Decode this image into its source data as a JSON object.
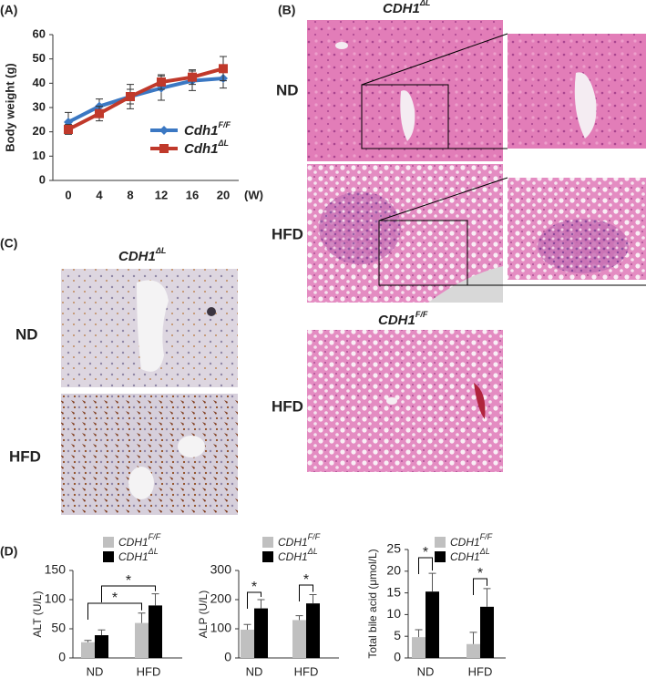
{
  "figure": {
    "panel_labels": [
      "(A)",
      "(B)",
      "(C)",
      "(D)"
    ],
    "B": {
      "header": {
        "text": "CDH1",
        "sup": "ΔL"
      },
      "rows": [
        "ND",
        "HFD"
      ],
      "header2": {
        "text": "CDH1",
        "sup": "F/F"
      },
      "row3": "HFD"
    },
    "C": {
      "header": {
        "text": "CDH1",
        "sup": "ΔL"
      },
      "rows": [
        "ND",
        "HFD"
      ]
    }
  },
  "chart_data": [
    {
      "type": "line",
      "y_label": "Body weight (g)",
      "x_label": "(W)",
      "categories": [
        "0",
        "4",
        "8",
        "12",
        "16",
        "20"
      ],
      "ylim": [
        0,
        60
      ],
      "yticks": [
        0,
        10,
        20,
        30,
        40,
        50,
        60
      ],
      "series": [
        {
          "name": "Cdh1",
          "superscript": "F/F",
          "color": "#3b78c3",
          "values": [
            24,
            30.5,
            34.5,
            38,
            41,
            42
          ],
          "errors": [
            4,
            3,
            3,
            5,
            4,
            4
          ]
        },
        {
          "name": "Cdh1",
          "superscript": "ΔL",
          "color": "#c0392b",
          "values": [
            21,
            27.5,
            34.5,
            40.5,
            42.5,
            46
          ],
          "errors": [
            2,
            3,
            5,
            3,
            3,
            5
          ]
        }
      ]
    },
    {
      "type": "bar",
      "y_label": "ALT (U/L)",
      "categories": [
        "ND",
        "HFD"
      ],
      "ylim": [
        0,
        150
      ],
      "yticks": [
        0,
        50,
        100,
        150
      ],
      "annotations": [
        "*",
        "*"
      ],
      "series": [
        {
          "name": "CDH1",
          "superscript": "F/F",
          "color": "#c0c0c0",
          "values": [
            27,
            60
          ],
          "errors": [
            3,
            17
          ]
        },
        {
          "name": "CDH1",
          "superscript": "ΔL",
          "color": "#000000",
          "values": [
            39,
            90
          ],
          "errors": [
            9,
            20
          ]
        }
      ]
    },
    {
      "type": "bar",
      "y_label": "ALP (U/L)",
      "categories": [
        "ND",
        "HFD"
      ],
      "ylim": [
        0,
        300
      ],
      "yticks": [
        0,
        100,
        200,
        300
      ],
      "annotations": [
        "*",
        "*"
      ],
      "series": [
        {
          "name": "CDH1",
          "superscript": "F/F",
          "color": "#c0c0c0",
          "values": [
            97,
            130
          ],
          "errors": [
            18,
            15
          ]
        },
        {
          "name": "CDH1",
          "superscript": "ΔL",
          "color": "#000000",
          "values": [
            170,
            187
          ],
          "errors": [
            30,
            30
          ]
        }
      ]
    },
    {
      "type": "bar",
      "y_label": "Total bile acid (μmol/L)",
      "categories": [
        "ND",
        "HFD"
      ],
      "ylim": [
        0,
        25
      ],
      "yticks": [
        0,
        5,
        10,
        15,
        20,
        25
      ],
      "annotations": [
        "*",
        "*"
      ],
      "series": [
        {
          "name": "CDH1",
          "superscript": "F/F",
          "color": "#c0c0c0",
          "values": [
            4.8,
            3.2
          ],
          "errors": [
            1.7,
            2.7
          ]
        },
        {
          "name": "CDH1",
          "superscript": "ΔL",
          "color": "#000000",
          "values": [
            15.3,
            11.8
          ],
          "errors": [
            4.2,
            4.2
          ]
        }
      ]
    }
  ]
}
